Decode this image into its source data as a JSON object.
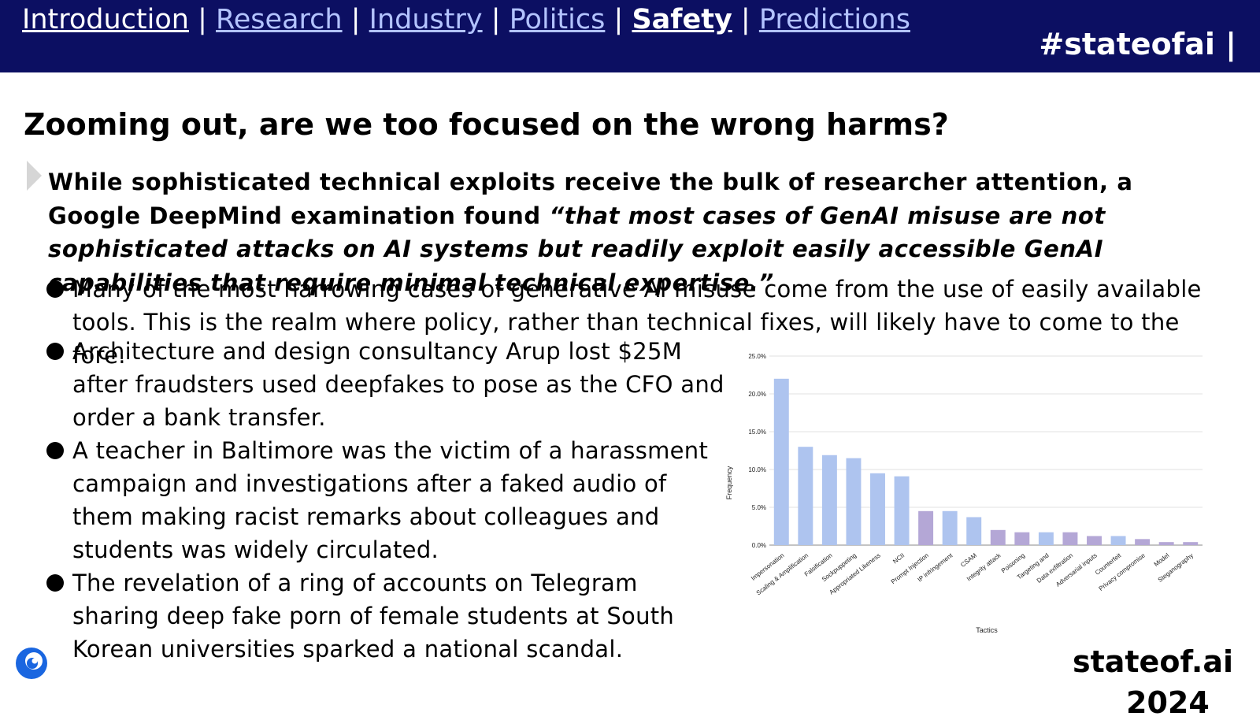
{
  "nav": {
    "items": [
      {
        "label": "Introduction",
        "active": false
      },
      {
        "label": "Research",
        "active": false
      },
      {
        "label": "Industry",
        "active": false
      },
      {
        "label": "Politics",
        "active": false
      },
      {
        "label": "Safety",
        "active": true
      },
      {
        "label": "Predictions",
        "active": false
      }
    ],
    "separator": "|"
  },
  "hashtag": "#stateofai |",
  "slide": {
    "title": "Zooming out, are we too focused on the wrong harms?",
    "lead_plain": "While sophisticated technical exploits receive the bulk of researcher attention, a Google DeepMind examination found ",
    "lead_quote": "“that most cases of GenAI misuse are not sophisticated attacks on AI systems but readily exploit easily accessible GenAI capabilities that require minimal technical expertise.”",
    "bullets": [
      "Many of the most harrowing cases of generative AI misuse come from the use of easily available tools. This is the realm where policy, rather than technical fixes, will likely have to come to the fore.",
      "Architecture and design consultancy Arup lost $25M after fraudsters used deepfakes to pose as the CFO and order a bank transfer.",
      "A teacher in Baltimore was the victim of a harassment campaign and investigations after a faked audio of them making racist remarks about colleagues and students was widely circulated.",
      "The revelation of a ring of accounts on Telegram sharing deep fake porn of female students at South Korean universities sparked a national scandal."
    ]
  },
  "chart_data": {
    "type": "bar",
    "xlabel": "Tactics",
    "ylabel": "Frequency",
    "ylim": [
      0,
      25
    ],
    "yticks": [
      "0.0%",
      "5.0%",
      "10.0%",
      "15.0%",
      "20.0%",
      "25.0%"
    ],
    "grid": true,
    "categories": [
      "Impersonation",
      "Scaling & Amplification",
      "Falsification",
      "Sockpuppeting",
      "Appropriated Likeness",
      "NCII",
      "Prompt Injection",
      "IP infringement",
      "CSAM",
      "Integrity attack",
      "Poisoning",
      "Targeting and",
      "Data exfiltration",
      "Adversarial inputs",
      "Counterfeit",
      "Privacy compromise",
      "Model",
      "Steganography"
    ],
    "values": [
      22.0,
      13.0,
      11.9,
      11.5,
      9.5,
      9.1,
      4.5,
      4.5,
      3.7,
      2.0,
      1.7,
      1.7,
      1.7,
      1.2,
      1.2,
      0.8,
      0.4,
      0.4
    ],
    "group": [
      "exploit",
      "exploit",
      "exploit",
      "exploit",
      "exploit",
      "exploit",
      "compromise",
      "exploit",
      "exploit",
      "compromise",
      "compromise",
      "exploit",
      "compromise",
      "compromise",
      "exploit",
      "compromise",
      "compromise",
      "compromise"
    ],
    "colors": {
      "exploit": "#aec4ef",
      "compromise": "#b4a7d6"
    }
  },
  "footer": {
    "logo_icon": "deepmind-logo-icon",
    "brand": "stateof.ai",
    "year": "2024"
  }
}
